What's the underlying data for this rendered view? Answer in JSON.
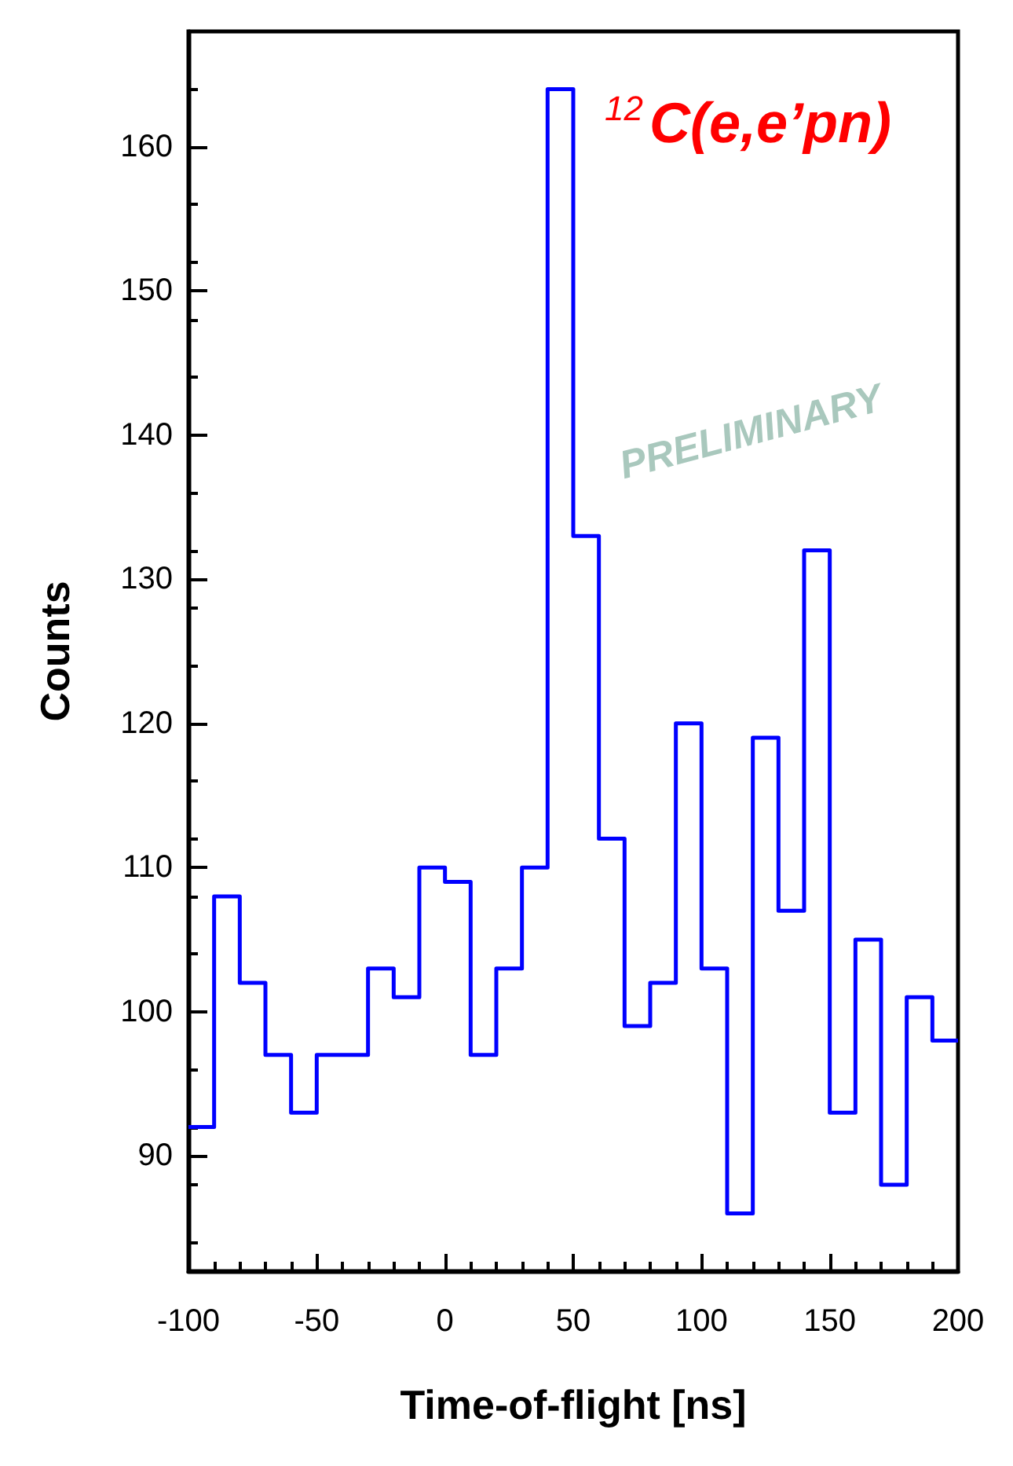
{
  "chart_data": {
    "type": "histogram",
    "xlabel": "Time-of-flight [ns]",
    "ylabel": "Counts",
    "annotations": [
      "$^{12}$C(e,e’pn)",
      "PRELIMINARY"
    ],
    "bins": [
      -100,
      -90,
      -80,
      -70,
      -60,
      -50,
      -40,
      -30,
      -20,
      -10,
      0,
      10,
      20,
      30,
      40,
      50,
      60,
      70,
      80,
      90,
      100,
      110,
      120,
      130,
      140,
      150,
      160,
      170,
      180,
      190,
      200
    ],
    "values": [
      92,
      108,
      102,
      97,
      93,
      97,
      97,
      103,
      101,
      110,
      109,
      97,
      103,
      110,
      164,
      133,
      112,
      99,
      102,
      120,
      103,
      86,
      119,
      107,
      132,
      93,
      105,
      88,
      101,
      98
    ],
    "color": "#0000ff",
    "xlim": [
      -100,
      200
    ],
    "xticks": [
      -100,
      -50,
      0,
      50,
      100,
      150,
      200
    ],
    "ylim": [
      82,
      168
    ],
    "yticks": [
      90,
      100,
      110,
      120,
      130,
      140,
      150,
      160
    ],
    "grid": false
  }
}
